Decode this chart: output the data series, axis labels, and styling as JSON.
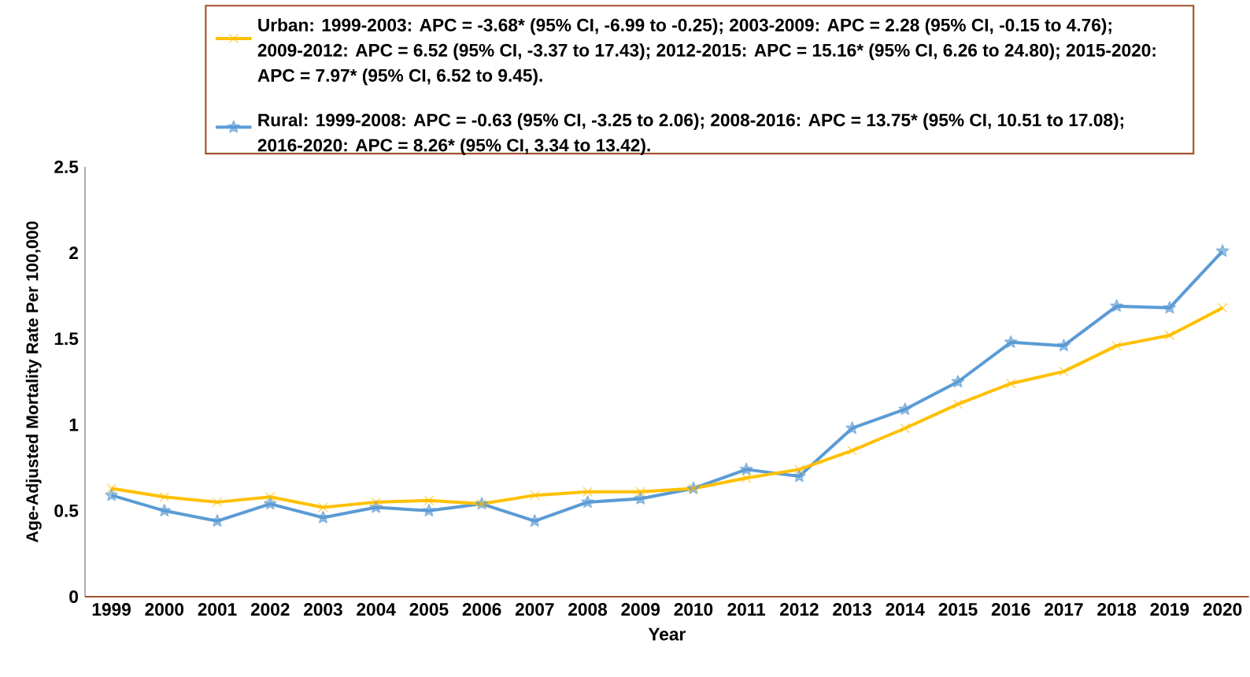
{
  "chart_data": {
    "type": "line",
    "xlabel": "Year",
    "ylabel": "Age-Adjusted Mortality Rate Per 100,000",
    "categories": [
      "1999",
      "2000",
      "2001",
      "2002",
      "2003",
      "2004",
      "2005",
      "2006",
      "2007",
      "2008",
      "2009",
      "2010",
      "2011",
      "2012",
      "2013",
      "2014",
      "2015",
      "2016",
      "2017",
      "2018",
      "2019",
      "2020"
    ],
    "series": [
      {
        "name": "Urban: 1999-2003: APC = -3.68* (95% CI, -6.99 to -0.25); 2003-2009: APC = 2.28 (95% CI, -0.15 to 4.76); 2009-2012: APC = 6.52 (95% CI, -3.37 to 17.43); 2012-2015: APC = 15.16* (95% CI, 6.26 to 24.80); 2015-2020: APC = 7.97* (95% CI, 6.52 to 9.45).",
        "color": "#ffc000",
        "marker": "cross",
        "values": [
          0.63,
          0.58,
          0.55,
          0.58,
          0.52,
          0.55,
          0.56,
          0.54,
          0.59,
          0.61,
          0.61,
          0.63,
          0.69,
          0.74,
          0.85,
          0.98,
          1.12,
          1.24,
          1.31,
          1.46,
          1.52,
          1.68
        ]
      },
      {
        "name": "Rural: 1999-2008: APC = -0.63 (95% CI, -3.25 to 2.06); 2008-2016: APC = 13.75* (95% CI, 10.51 to 17.08); 2016-2020: APC = 8.26* (95% CI, 3.34 to 13.42).",
        "color": "#5b9bd5",
        "marker": "star",
        "values": [
          0.59,
          0.5,
          0.44,
          0.54,
          0.46,
          0.52,
          0.5,
          0.54,
          0.44,
          0.55,
          0.57,
          0.63,
          0.74,
          0.7,
          0.98,
          1.09,
          1.25,
          1.48,
          1.46,
          1.69,
          1.68,
          2.01
        ]
      }
    ],
    "ylim": [
      0,
      2.5
    ],
    "yticks": [
      0,
      0.5,
      1,
      1.5,
      2,
      2.5
    ],
    "grid": false,
    "legend": "top",
    "line_style": "solid"
  }
}
